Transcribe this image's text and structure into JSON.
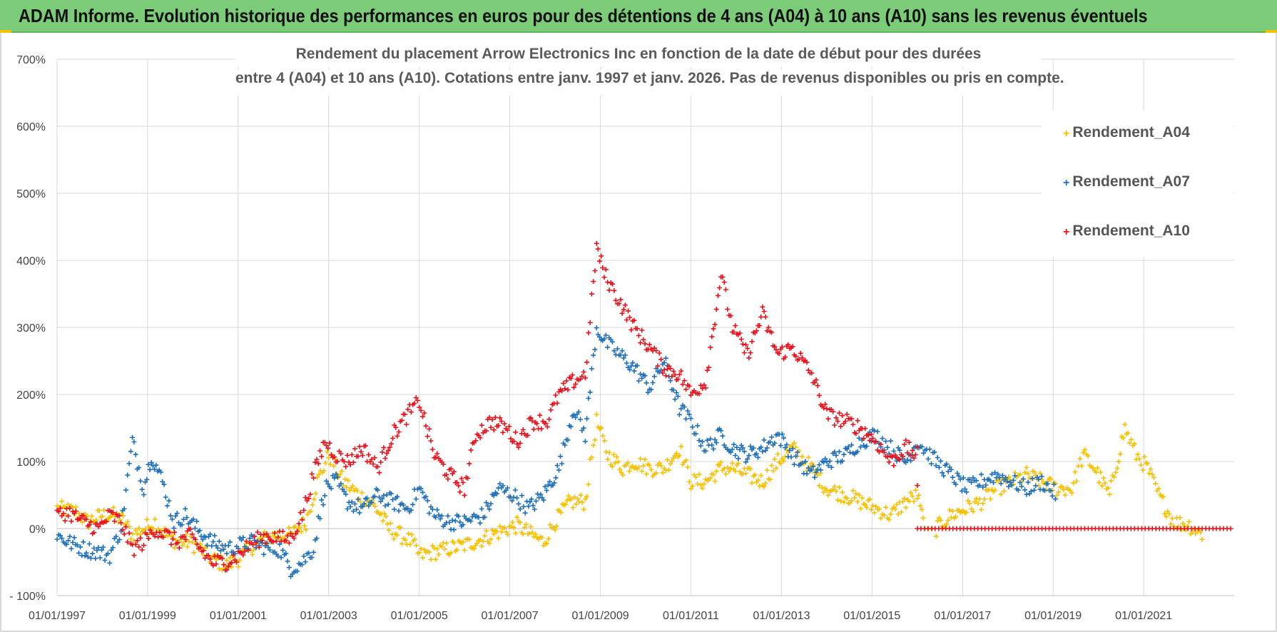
{
  "banner": {
    "title": "ADAM Informe. Evolution historique des performances en euros pour des détentions de 4 ans (A04) à 10 ans (A10) sans les revenus éventuels"
  },
  "chart_data": {
    "type": "scatter",
    "title_line1": "Rendement du placement Arrow Electronics Inc en fonction de la date de début pour des durées",
    "title_line2": "entre 4 (A04) et 10 ans (A10).  Cotations entre janv. 1997 et janv. 2026. Pas de revenus disponibles ou pris en compte.",
    "x_tick_labels": [
      "01/01/1997",
      "01/01/1999",
      "01/01/2001",
      "01/01/2003",
      "01/01/2005",
      "01/01/2007",
      "01/01/2009",
      "01/01/2011",
      "01/01/2013",
      "01/01/2015",
      "01/01/2017",
      "01/01/2019",
      "01/01/2021"
    ],
    "y_tick_labels": [
      "- 100%",
      "0%",
      "100%",
      "200%",
      "300%",
      "400%",
      "500%",
      "600%",
      "700%"
    ],
    "xlim": [
      "1997-01-01",
      "2023-01-01"
    ],
    "ylim": [
      -100,
      700
    ],
    "grid": true,
    "legend_position": "top-right",
    "series": [
      {
        "name": "Rendement_A04",
        "color": "#f5c000",
        "points": [
          [
            "1997-01-01",
            30
          ],
          [
            "1997-06-01",
            25
          ],
          [
            "1997-09-01",
            10
          ],
          [
            "1998-01-01",
            20
          ],
          [
            "1998-04-01",
            20
          ],
          [
            "1998-07-01",
            10
          ],
          [
            "1998-09-01",
            -10
          ],
          [
            "1998-12-01",
            0
          ],
          [
            "1999-03-01",
            10
          ],
          [
            "1999-06-01",
            -10
          ],
          [
            "1999-09-01",
            -20
          ],
          [
            "1999-12-01",
            -20
          ],
          [
            "2000-03-01",
            -30
          ],
          [
            "2000-06-01",
            -45
          ],
          [
            "2000-10-01",
            -55
          ],
          [
            "2001-01-01",
            -45
          ],
          [
            "2001-04-01",
            -30
          ],
          [
            "2001-08-01",
            -15
          ],
          [
            "2001-11-01",
            -10
          ],
          [
            "2002-03-01",
            -10
          ],
          [
            "2002-07-01",
            10
          ],
          [
            "2002-10-01",
            70
          ],
          [
            "2003-01-01",
            110
          ],
          [
            "2003-05-01",
            70
          ],
          [
            "2003-09-01",
            50
          ],
          [
            "2003-12-01",
            40
          ],
          [
            "2004-03-01",
            20
          ],
          [
            "2004-05-01",
            0
          ],
          [
            "2004-08-01",
            -10
          ],
          [
            "2004-11-01",
            -20
          ],
          [
            "2005-01-01",
            -40
          ],
          [
            "2005-05-01",
            -35
          ],
          [
            "2005-09-01",
            -30
          ],
          [
            "2006-01-01",
            -25
          ],
          [
            "2006-06-01",
            -15
          ],
          [
            "2006-10-01",
            -5
          ],
          [
            "2007-03-01",
            5
          ],
          [
            "2007-07-01",
            -10
          ],
          [
            "2007-10-01",
            -20
          ],
          [
            "2008-01-01",
            10
          ],
          [
            "2008-05-01",
            40
          ],
          [
            "2008-09-01",
            40
          ],
          [
            "2008-12-01",
            160
          ],
          [
            "2009-03-01",
            110
          ],
          [
            "2009-07-01",
            90
          ],
          [
            "2009-10-01",
            100
          ],
          [
            "2010-02-01",
            90
          ],
          [
            "2010-06-01",
            90
          ],
          [
            "2010-10-01",
            120
          ],
          [
            "2011-01-01",
            70
          ],
          [
            "2011-05-01",
            70
          ],
          [
            "2011-09-01",
            90
          ],
          [
            "2011-12-01",
            90
          ],
          [
            "2012-04-01",
            80
          ],
          [
            "2012-08-01",
            70
          ],
          [
            "2012-12-01",
            100
          ],
          [
            "2013-04-01",
            120
          ],
          [
            "2013-09-01",
            90
          ],
          [
            "2014-01-01",
            60
          ],
          [
            "2014-06-01",
            50
          ],
          [
            "2014-10-01",
            40
          ],
          [
            "2015-02-01",
            30
          ],
          [
            "2015-06-01",
            20
          ],
          [
            "2015-10-01",
            40
          ],
          [
            "2016-01-01",
            50
          ],
          [
            "2016-03-01",
            0
          ],
          [
            "2016-06-01",
            0
          ],
          [
            "2016-10-01",
            20
          ],
          [
            "2017-02-01",
            30
          ],
          [
            "2017-06-01",
            40
          ],
          [
            "2017-10-01",
            60
          ],
          [
            "2018-02-01",
            70
          ],
          [
            "2018-06-01",
            80
          ],
          [
            "2018-10-01",
            70
          ],
          [
            "2019-02-01",
            60
          ],
          [
            "2019-06-01",
            60
          ],
          [
            "2019-09-01",
            110
          ],
          [
            "2019-12-01",
            90
          ],
          [
            "2020-04-01",
            50
          ],
          [
            "2020-08-01",
            150
          ],
          [
            "2020-11-01",
            110
          ],
          [
            "2021-02-01",
            90
          ],
          [
            "2021-05-01",
            50
          ],
          [
            "2021-09-01",
            10
          ],
          [
            "2022-01-01",
            5
          ],
          [
            "2022-05-01",
            -10
          ]
        ]
      },
      {
        "name": "Rendement_A07",
        "color": "#1f6fb8",
        "points": [
          [
            "1997-01-01",
            -10
          ],
          [
            "1997-04-01",
            -20
          ],
          [
            "1997-08-01",
            -30
          ],
          [
            "1997-12-01",
            -35
          ],
          [
            "1998-03-01",
            -40
          ],
          [
            "1998-06-01",
            0
          ],
          [
            "1998-09-01",
            130
          ],
          [
            "1998-12-01",
            60
          ],
          [
            "1999-02-01",
            110
          ],
          [
            "1999-05-01",
            70
          ],
          [
            "1999-08-01",
            10
          ],
          [
            "1999-11-01",
            20
          ],
          [
            "2000-02-01",
            0
          ],
          [
            "2000-06-01",
            -20
          ],
          [
            "2000-10-01",
            -30
          ],
          [
            "2001-01-01",
            -25
          ],
          [
            "2001-05-01",
            -20
          ],
          [
            "2001-09-01",
            -30
          ],
          [
            "2001-12-01",
            -30
          ],
          [
            "2002-03-01",
            -60
          ],
          [
            "2002-06-01",
            -50
          ],
          [
            "2002-09-01",
            -30
          ],
          [
            "2002-12-01",
            60
          ],
          [
            "2003-03-01",
            70
          ],
          [
            "2003-06-01",
            40
          ],
          [
            "2003-10-01",
            30
          ],
          [
            "2004-02-01",
            50
          ],
          [
            "2004-06-01",
            40
          ],
          [
            "2004-10-01",
            30
          ],
          [
            "2005-01-01",
            60
          ],
          [
            "2005-05-01",
            20
          ],
          [
            "2005-09-01",
            10
          ],
          [
            "2006-01-01",
            10
          ],
          [
            "2006-06-01",
            20
          ],
          [
            "2006-10-01",
            60
          ],
          [
            "2007-02-01",
            50
          ],
          [
            "2007-06-01",
            30
          ],
          [
            "2007-10-01",
            50
          ],
          [
            "2008-02-01",
            90
          ],
          [
            "2008-06-01",
            180
          ],
          [
            "2008-09-01",
            140
          ],
          [
            "2008-12-01",
            300
          ],
          [
            "2009-02-01",
            280
          ],
          [
            "2009-06-01",
            260
          ],
          [
            "2009-10-01",
            240
          ],
          [
            "2010-02-01",
            210
          ],
          [
            "2010-06-01",
            250
          ],
          [
            "2010-10-01",
            180
          ],
          [
            "2011-01-01",
            160
          ],
          [
            "2011-05-01",
            120
          ],
          [
            "2011-09-01",
            140
          ],
          [
            "2011-12-01",
            120
          ],
          [
            "2012-04-01",
            110
          ],
          [
            "2012-08-01",
            120
          ],
          [
            "2012-12-01",
            140
          ],
          [
            "2013-04-01",
            110
          ],
          [
            "2013-09-01",
            80
          ],
          [
            "2014-01-01",
            100
          ],
          [
            "2014-06-01",
            110
          ],
          [
            "2014-10-01",
            130
          ],
          [
            "2015-02-01",
            140
          ],
          [
            "2015-06-01",
            120
          ],
          [
            "2015-10-01",
            100
          ],
          [
            "2016-01-01",
            130
          ],
          [
            "2016-06-01",
            100
          ],
          [
            "2016-10-01",
            80
          ],
          [
            "2017-02-01",
            60
          ],
          [
            "2017-06-01",
            70
          ],
          [
            "2017-10-01",
            80
          ],
          [
            "2018-02-01",
            70
          ],
          [
            "2018-06-01",
            60
          ],
          [
            "2018-10-01",
            70
          ],
          [
            "2019-02-01",
            50
          ]
        ]
      },
      {
        "name": "Rendement_A10",
        "color": "#e8101a",
        "points": [
          [
            "1997-01-01",
            20
          ],
          [
            "1997-04-01",
            25
          ],
          [
            "1997-08-01",
            10
          ],
          [
            "1997-12-01",
            0
          ],
          [
            "1998-03-01",
            20
          ],
          [
            "1998-06-01",
            10
          ],
          [
            "1998-09-01",
            -30
          ],
          [
            "1998-12-01",
            -20
          ],
          [
            "1999-03-01",
            0
          ],
          [
            "1999-06-01",
            -10
          ],
          [
            "1999-09-01",
            -20
          ],
          [
            "1999-12-01",
            -10
          ],
          [
            "2000-03-01",
            -30
          ],
          [
            "2000-06-01",
            -50
          ],
          [
            "2000-10-01",
            -50
          ],
          [
            "2001-01-01",
            -40
          ],
          [
            "2001-05-01",
            -20
          ],
          [
            "2001-09-01",
            -10
          ],
          [
            "2001-12-01",
            -15
          ],
          [
            "2002-03-01",
            -15
          ],
          [
            "2002-06-01",
            20
          ],
          [
            "2002-09-01",
            80
          ],
          [
            "2002-12-01",
            130
          ],
          [
            "2003-03-01",
            110
          ],
          [
            "2003-06-01",
            100
          ],
          [
            "2003-10-01",
            120
          ],
          [
            "2004-02-01",
            90
          ],
          [
            "2004-06-01",
            140
          ],
          [
            "2004-10-01",
            170
          ],
          [
            "2005-01-01",
            190
          ],
          [
            "2005-05-01",
            110
          ],
          [
            "2005-09-01",
            80
          ],
          [
            "2006-01-01",
            60
          ],
          [
            "2006-04-01",
            140
          ],
          [
            "2006-08-01",
            160
          ],
          [
            "2006-12-01",
            150
          ],
          [
            "2007-03-01",
            130
          ],
          [
            "2007-07-01",
            160
          ],
          [
            "2007-11-01",
            160
          ],
          [
            "2008-02-01",
            200
          ],
          [
            "2008-06-01",
            220
          ],
          [
            "2008-09-01",
            230
          ],
          [
            "2008-12-01",
            420
          ],
          [
            "2009-02-01",
            380
          ],
          [
            "2009-06-01",
            340
          ],
          [
            "2009-10-01",
            300
          ],
          [
            "2010-02-01",
            270
          ],
          [
            "2010-06-01",
            240
          ],
          [
            "2010-10-01",
            230
          ],
          [
            "2011-01-01",
            200
          ],
          [
            "2011-05-01",
            220
          ],
          [
            "2011-09-01",
            380
          ],
          [
            "2011-12-01",
            300
          ],
          [
            "2012-04-01",
            260
          ],
          [
            "2012-08-01",
            320
          ],
          [
            "2012-12-01",
            260
          ],
          [
            "2013-04-01",
            270
          ],
          [
            "2013-09-01",
            230
          ],
          [
            "2014-01-01",
            170
          ],
          [
            "2014-06-01",
            160
          ],
          [
            "2014-10-01",
            150
          ],
          [
            "2015-02-01",
            130
          ],
          [
            "2015-06-01",
            100
          ],
          [
            "2015-10-01",
            120
          ],
          [
            "2016-01-01",
            110
          ],
          [
            "2016-01-02",
            0
          ],
          [
            "2023-01-01",
            0
          ]
        ]
      }
    ]
  }
}
